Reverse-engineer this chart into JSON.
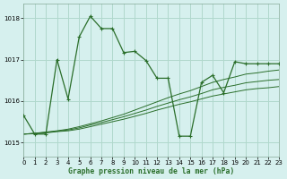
{
  "title": "Graphe pression niveau de la mer (hPa)",
  "bg_color": "#d6f0ee",
  "grid_color": "#b0d8cc",
  "line_color": "#2a6e2a",
  "xlim": [
    0,
    23
  ],
  "ylim": [
    1014.65,
    1018.35
  ],
  "yticks": [
    1015,
    1016,
    1017,
    1018
  ],
  "xticks": [
    0,
    1,
    2,
    3,
    4,
    5,
    6,
    7,
    8,
    9,
    10,
    11,
    12,
    13,
    14,
    15,
    16,
    17,
    18,
    19,
    20,
    21,
    22,
    23
  ],
  "main_x": [
    0,
    1,
    2,
    3,
    4,
    5,
    6,
    7,
    8,
    9,
    10,
    11,
    12,
    13,
    14,
    15,
    16,
    17,
    18,
    19,
    20,
    21,
    22,
    23
  ],
  "main_y": [
    1015.65,
    1015.2,
    1015.2,
    1017.0,
    1016.05,
    1017.55,
    1018.05,
    1017.75,
    1017.75,
    1017.17,
    1017.2,
    1016.98,
    1016.55,
    1016.55,
    1015.15,
    1015.15,
    1016.45,
    1016.62,
    1016.2,
    1016.95,
    1016.9,
    1016.9,
    1016.9,
    1016.9
  ],
  "slow_lines": [
    [
      1015.2,
      1015.22,
      1015.25,
      1015.28,
      1015.32,
      1015.38,
      1015.45,
      1015.52,
      1015.6,
      1015.68,
      1015.78,
      1015.88,
      1015.98,
      1016.08,
      1016.17,
      1016.25,
      1016.35,
      1016.45,
      1016.52,
      1016.58,
      1016.65,
      1016.68,
      1016.72,
      1016.75
    ],
    [
      1015.2,
      1015.22,
      1015.24,
      1015.27,
      1015.3,
      1015.35,
      1015.42,
      1015.48,
      1015.55,
      1015.62,
      1015.7,
      1015.78,
      1015.87,
      1015.95,
      1016.03,
      1016.1,
      1016.18,
      1016.27,
      1016.33,
      1016.38,
      1016.44,
      1016.47,
      1016.5,
      1016.52
    ],
    [
      1015.2,
      1015.21,
      1015.23,
      1015.26,
      1015.28,
      1015.32,
      1015.38,
      1015.44,
      1015.5,
      1015.56,
      1015.63,
      1015.7,
      1015.78,
      1015.85,
      1015.92,
      1015.98,
      1016.05,
      1016.12,
      1016.17,
      1016.22,
      1016.27,
      1016.3,
      1016.32,
      1016.35
    ]
  ]
}
